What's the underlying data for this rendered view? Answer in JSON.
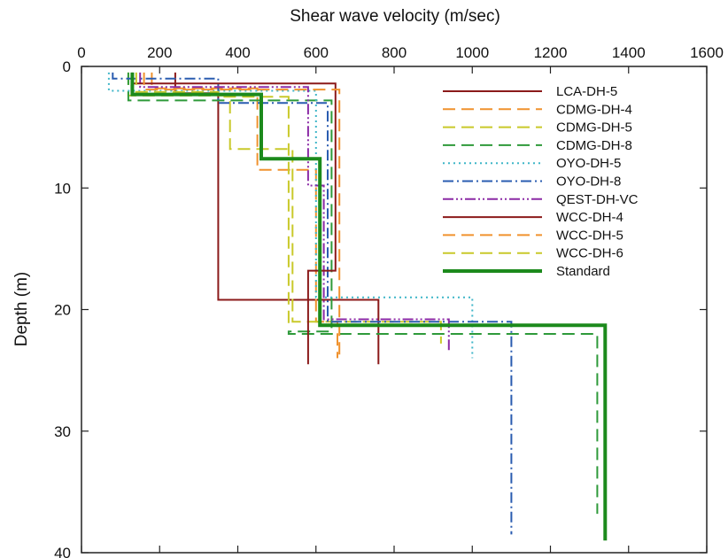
{
  "chart_data": {
    "type": "line",
    "xlabel": "Shear wave velocity (m/sec)",
    "ylabel": "Depth (m)",
    "xlim": [
      0,
      1600
    ],
    "ylim": [
      0,
      40
    ],
    "y_inverted": true,
    "x_axis_position": "top",
    "xticks": [
      0,
      200,
      400,
      600,
      800,
      1000,
      1200,
      1400,
      1600
    ],
    "yticks": [
      0,
      10,
      20,
      30,
      40
    ],
    "grid": false,
    "legend_position": "top-right",
    "series": [
      {
        "name": "LCA-DH-5",
        "color": "#8b1a1a",
        "dash": "solid",
        "width": 2,
        "points": [
          [
            240,
            0.5
          ],
          [
            240,
            2.2
          ],
          [
            350,
            2.2
          ],
          [
            350,
            19.2
          ],
          [
            760,
            19.2
          ],
          [
            760,
            24.5
          ]
        ]
      },
      {
        "name": "CDMG-DH-4",
        "color": "#f0922e",
        "dash": "long",
        "width": 2,
        "points": [
          [
            180,
            0.5
          ],
          [
            180,
            1.8
          ],
          [
            450,
            1.8
          ],
          [
            450,
            8.5
          ],
          [
            600,
            8.5
          ],
          [
            600,
            21.0
          ],
          [
            655,
            21.0
          ],
          [
            655,
            24.0
          ]
        ]
      },
      {
        "name": "CDMG-DH-5",
        "color": "#c9c92a",
        "dash": "long",
        "width": 2,
        "points": [
          [
            120,
            0.5
          ],
          [
            120,
            2.4
          ],
          [
            380,
            2.4
          ],
          [
            380,
            6.8
          ],
          [
            540,
            6.8
          ],
          [
            540,
            21.0
          ],
          [
            920,
            21.0
          ],
          [
            920,
            22.8
          ]
        ]
      },
      {
        "name": "CDMG-DH-8",
        "color": "#2e9a3a",
        "dash": "long",
        "width": 2,
        "points": [
          [
            120,
            0.5
          ],
          [
            120,
            2.8
          ],
          [
            640,
            2.8
          ],
          [
            640,
            21.8
          ],
          [
            530,
            21.8
          ],
          [
            530,
            22.0
          ],
          [
            1320,
            22.0
          ],
          [
            1320,
            36.8
          ]
        ]
      },
      {
        "name": "OYO-DH-5",
        "color": "#3fb6c8",
        "dash": "dot",
        "width": 2,
        "points": [
          [
            70,
            0.5
          ],
          [
            70,
            2.0
          ],
          [
            600,
            2.0
          ],
          [
            600,
            19.0
          ],
          [
            1000,
            19.0
          ],
          [
            1000,
            24.0
          ]
        ]
      },
      {
        "name": "OYO-DH-8",
        "color": "#2a5cb0",
        "dash": "dashdot",
        "width": 2,
        "points": [
          [
            80,
            0.5
          ],
          [
            80,
            1.0
          ],
          [
            350,
            1.0
          ],
          [
            350,
            3.0
          ],
          [
            630,
            3.0
          ],
          [
            630,
            21.0
          ],
          [
            1100,
            21.0
          ],
          [
            1100,
            38.5
          ]
        ]
      },
      {
        "name": "QEST-DH-VC",
        "color": "#8b2aa5",
        "dash": "dashdotdot",
        "width": 2,
        "points": [
          [
            150,
            0.5
          ],
          [
            150,
            1.7
          ],
          [
            580,
            1.7
          ],
          [
            580,
            9.8
          ],
          [
            620,
            9.8
          ],
          [
            620,
            20.8
          ],
          [
            940,
            20.8
          ],
          [
            940,
            23.5
          ]
        ]
      },
      {
        "name": "WCC-DH-4",
        "color": "#8b1a1a",
        "dash": "solid",
        "width": 2,
        "points": [
          [
            130,
            0.5
          ],
          [
            130,
            1.4
          ],
          [
            650,
            1.4
          ],
          [
            650,
            16.8
          ],
          [
            580,
            16.8
          ],
          [
            580,
            24.5
          ]
        ]
      },
      {
        "name": "WCC-DH-5",
        "color": "#f0922e",
        "dash": "long",
        "width": 2,
        "points": [
          [
            160,
            0.5
          ],
          [
            160,
            1.9
          ],
          [
            660,
            1.9
          ],
          [
            660,
            21.3
          ],
          [
            660,
            24.0
          ]
        ]
      },
      {
        "name": "WCC-DH-6",
        "color": "#c9c92a",
        "dash": "long",
        "width": 2,
        "points": [
          [
            140,
            0.5
          ],
          [
            140,
            2.1
          ],
          [
            350,
            2.1
          ],
          [
            350,
            2.5
          ],
          [
            530,
            2.5
          ],
          [
            530,
            21.5
          ]
        ]
      },
      {
        "name": "Standard",
        "color": "#1c8a1c",
        "dash": "solid",
        "width": 4,
        "points": [
          [
            130,
            0.5
          ],
          [
            130,
            2.3
          ],
          [
            460,
            2.3
          ],
          [
            460,
            7.6
          ],
          [
            610,
            7.6
          ],
          [
            610,
            21.3
          ],
          [
            1340,
            21.3
          ],
          [
            1340,
            39.0
          ]
        ]
      }
    ]
  }
}
